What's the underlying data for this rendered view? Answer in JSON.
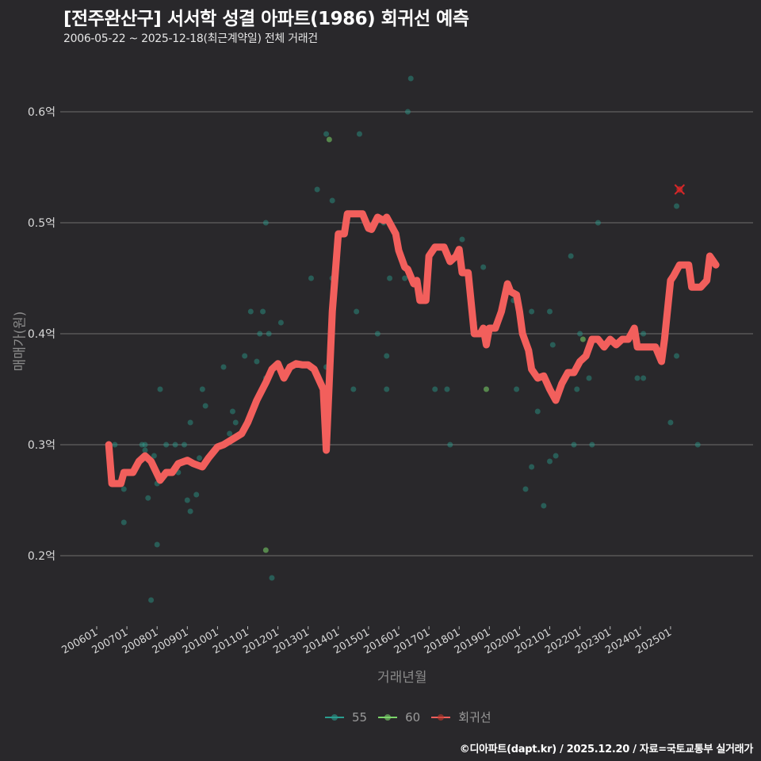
{
  "header": {
    "title": "[전주완산구] 서서학 성결 아파트(1986) 회귀선 예측",
    "subtitle": "2006-05-22 ~ 2025-12-18(최근계약일) 전체 거래건"
  },
  "axes": {
    "ylabel": "매매가(원)",
    "xlabel": "거래년월"
  },
  "legend": {
    "items": [
      {
        "label": "55",
        "color": "#2a9d8f"
      },
      {
        "label": "60",
        "color": "#7bd56a"
      },
      {
        "label": "회귀선",
        "color": "#f25f5c"
      }
    ]
  },
  "footer": {
    "credit": "©디아파트(dapt.kr) / 2025.12.20 / 자료=국토교통부 실거래가"
  },
  "chart_data": {
    "type": "scatter",
    "title": "[전주완산구] 서서학 성결 아파트(1986) 회귀선 예측",
    "subtitle": "2006-05-22 ~ 2025-12-18(최근계약일) 전체 거래건",
    "xlabel": "거래년월",
    "ylabel": "매매가(원)",
    "ylim": [
      0.14,
      0.655
    ],
    "y_ticks": [
      0.2,
      0.3,
      0.4,
      0.5,
      0.6
    ],
    "y_tick_labels": [
      "0.2억",
      "0.3억",
      "0.4억",
      "0.5억",
      "0.6억"
    ],
    "x_ticks": [
      "200601",
      "200701",
      "200801",
      "200901",
      "201001",
      "201101",
      "201201",
      "201301",
      "201401",
      "201501",
      "201601",
      "201701",
      "201801",
      "201901",
      "202001",
      "202101",
      "202201",
      "202301",
      "202401",
      "202501"
    ],
    "grid": "horizontal",
    "legend_position": "bottom",
    "series": [
      {
        "name": "55",
        "type": "scatter",
        "color": "#2a9d8f",
        "points": [
          [
            2006.6,
            0.3
          ],
          [
            2006.9,
            0.23
          ],
          [
            2006.9,
            0.26
          ],
          [
            2007.5,
            0.3
          ],
          [
            2007.6,
            0.3
          ],
          [
            2007.6,
            0.295
          ],
          [
            2007.7,
            0.252
          ],
          [
            2007.8,
            0.16
          ],
          [
            2007.9,
            0.29
          ],
          [
            2008.0,
            0.265
          ],
          [
            2008.0,
            0.21
          ],
          [
            2008.1,
            0.35
          ],
          [
            2008.3,
            0.3
          ],
          [
            2008.6,
            0.3
          ],
          [
            2008.7,
            0.275
          ],
          [
            2008.9,
            0.3
          ],
          [
            2009.0,
            0.25
          ],
          [
            2009.1,
            0.24
          ],
          [
            2009.1,
            0.32
          ],
          [
            2009.3,
            0.255
          ],
          [
            2009.4,
            0.288
          ],
          [
            2009.5,
            0.35
          ],
          [
            2009.6,
            0.335
          ],
          [
            2010.2,
            0.37
          ],
          [
            2010.4,
            0.31
          ],
          [
            2010.5,
            0.33
          ],
          [
            2010.6,
            0.32
          ],
          [
            2010.9,
            0.38
          ],
          [
            2011.1,
            0.42
          ],
          [
            2011.3,
            0.375
          ],
          [
            2011.4,
            0.4
          ],
          [
            2011.5,
            0.42
          ],
          [
            2011.6,
            0.36
          ],
          [
            2011.6,
            0.5
          ],
          [
            2011.7,
            0.4
          ],
          [
            2011.8,
            0.18
          ],
          [
            2012.1,
            0.41
          ],
          [
            2013.1,
            0.45
          ],
          [
            2013.3,
            0.53
          ],
          [
            2013.6,
            0.58
          ],
          [
            2013.6,
            0.37
          ],
          [
            2013.8,
            0.52
          ],
          [
            2013.8,
            0.45
          ],
          [
            2014.5,
            0.35
          ],
          [
            2014.6,
            0.42
          ],
          [
            2014.7,
            0.58
          ],
          [
            2015.3,
            0.4
          ],
          [
            2015.5,
            0.5
          ],
          [
            2015.6,
            0.35
          ],
          [
            2015.6,
            0.38
          ],
          [
            2015.7,
            0.45
          ],
          [
            2016.2,
            0.45
          ],
          [
            2016.3,
            0.6
          ],
          [
            2016.4,
            0.63
          ],
          [
            2016.9,
            0.43
          ],
          [
            2016.9,
            0.435
          ],
          [
            2017.2,
            0.35
          ],
          [
            2017.6,
            0.35
          ],
          [
            2017.7,
            0.3
          ],
          [
            2018.1,
            0.485
          ],
          [
            2018.5,
            0.41
          ],
          [
            2018.8,
            0.46
          ],
          [
            2019.8,
            0.43
          ],
          [
            2019.9,
            0.35
          ],
          [
            2020.2,
            0.26
          ],
          [
            2020.4,
            0.28
          ],
          [
            2020.4,
            0.42
          ],
          [
            2020.6,
            0.33
          ],
          [
            2020.8,
            0.245
          ],
          [
            2021.0,
            0.42
          ],
          [
            2021.0,
            0.285
          ],
          [
            2021.1,
            0.39
          ],
          [
            2021.2,
            0.29
          ],
          [
            2021.7,
            0.47
          ],
          [
            2021.8,
            0.3
          ],
          [
            2021.9,
            0.35
          ],
          [
            2022.0,
            0.4
          ],
          [
            2022.3,
            0.36
          ],
          [
            2022.4,
            0.3
          ],
          [
            2022.6,
            0.5
          ],
          [
            2023.9,
            0.36
          ],
          [
            2024.1,
            0.36
          ],
          [
            2024.1,
            0.4
          ],
          [
            2024.8,
            0.392
          ],
          [
            2025.0,
            0.32
          ],
          [
            2025.2,
            0.515
          ],
          [
            2025.2,
            0.38
          ],
          [
            2025.9,
            0.3
          ]
        ]
      },
      {
        "name": "60",
        "type": "scatter",
        "color": "#7bd56a",
        "points": [
          [
            2011.6,
            0.205
          ],
          [
            2013.7,
            0.575
          ],
          [
            2018.9,
            0.35
          ],
          [
            2022.1,
            0.395
          ]
        ]
      },
      {
        "name": "회귀선",
        "type": "line",
        "color": "#f25f5c",
        "points": [
          [
            2006.4,
            0.3
          ],
          [
            2006.5,
            0.265
          ],
          [
            2006.8,
            0.265
          ],
          [
            2006.9,
            0.275
          ],
          [
            2007.2,
            0.275
          ],
          [
            2007.4,
            0.285
          ],
          [
            2007.6,
            0.29
          ],
          [
            2007.8,
            0.285
          ],
          [
            2008.1,
            0.268
          ],
          [
            2008.3,
            0.275
          ],
          [
            2008.5,
            0.275
          ],
          [
            2008.7,
            0.283
          ],
          [
            2009.0,
            0.286
          ],
          [
            2009.2,
            0.283
          ],
          [
            2009.5,
            0.28
          ],
          [
            2009.7,
            0.288
          ],
          [
            2010.0,
            0.298
          ],
          [
            2010.2,
            0.3
          ],
          [
            2010.5,
            0.305
          ],
          [
            2010.8,
            0.31
          ],
          [
            2011.0,
            0.32
          ],
          [
            2011.3,
            0.34
          ],
          [
            2011.6,
            0.356
          ],
          [
            2011.8,
            0.368
          ],
          [
            2012.0,
            0.373
          ],
          [
            2012.2,
            0.36
          ],
          [
            2012.4,
            0.37
          ],
          [
            2012.6,
            0.373
          ],
          [
            2012.8,
            0.372
          ],
          [
            2013.0,
            0.372
          ],
          [
            2013.2,
            0.368
          ],
          [
            2013.5,
            0.35
          ],
          [
            2013.6,
            0.295
          ],
          [
            2013.8,
            0.42
          ],
          [
            2014.0,
            0.49
          ],
          [
            2014.2,
            0.49
          ],
          [
            2014.3,
            0.508
          ],
          [
            2014.6,
            0.508
          ],
          [
            2014.8,
            0.508
          ],
          [
            2015.0,
            0.495
          ],
          [
            2015.1,
            0.494
          ],
          [
            2015.3,
            0.505
          ],
          [
            2015.5,
            0.502
          ],
          [
            2015.6,
            0.505
          ],
          [
            2015.9,
            0.49
          ],
          [
            2016.0,
            0.475
          ],
          [
            2016.2,
            0.46
          ],
          [
            2016.3,
            0.458
          ],
          [
            2016.5,
            0.445
          ],
          [
            2016.6,
            0.448
          ],
          [
            2016.7,
            0.43
          ],
          [
            2016.9,
            0.43
          ],
          [
            2017.0,
            0.47
          ],
          [
            2017.2,
            0.478
          ],
          [
            2017.5,
            0.478
          ],
          [
            2017.7,
            0.465
          ],
          [
            2017.9,
            0.47
          ],
          [
            2018.0,
            0.476
          ],
          [
            2018.1,
            0.455
          ],
          [
            2018.3,
            0.455
          ],
          [
            2018.5,
            0.4
          ],
          [
            2018.7,
            0.4
          ],
          [
            2018.8,
            0.405
          ],
          [
            2018.9,
            0.39
          ],
          [
            2019.0,
            0.405
          ],
          [
            2019.2,
            0.405
          ],
          [
            2019.4,
            0.42
          ],
          [
            2019.6,
            0.445
          ],
          [
            2019.7,
            0.438
          ],
          [
            2019.9,
            0.435
          ],
          [
            2020.0,
            0.42
          ],
          [
            2020.1,
            0.4
          ],
          [
            2020.3,
            0.385
          ],
          [
            2020.4,
            0.368
          ],
          [
            2020.6,
            0.36
          ],
          [
            2020.8,
            0.362
          ],
          [
            2021.0,
            0.35
          ],
          [
            2021.2,
            0.34
          ],
          [
            2021.4,
            0.355
          ],
          [
            2021.6,
            0.365
          ],
          [
            2021.8,
            0.365
          ],
          [
            2022.0,
            0.375
          ],
          [
            2022.2,
            0.38
          ],
          [
            2022.4,
            0.395
          ],
          [
            2022.6,
            0.395
          ],
          [
            2022.8,
            0.388
          ],
          [
            2023.0,
            0.395
          ],
          [
            2023.2,
            0.39
          ],
          [
            2023.4,
            0.395
          ],
          [
            2023.6,
            0.395
          ],
          [
            2023.8,
            0.405
          ],
          [
            2023.9,
            0.388
          ],
          [
            2024.2,
            0.388
          ],
          [
            2024.5,
            0.388
          ],
          [
            2024.7,
            0.375
          ],
          [
            2024.8,
            0.395
          ],
          [
            2025.0,
            0.448
          ],
          [
            2025.1,
            0.452
          ],
          [
            2025.3,
            0.462
          ],
          [
            2025.6,
            0.462
          ],
          [
            2025.7,
            0.442
          ],
          [
            2026.0,
            0.442
          ],
          [
            2026.2,
            0.448
          ],
          [
            2026.3,
            0.47
          ],
          [
            2026.5,
            0.462
          ]
        ]
      }
    ],
    "annotations": [
      {
        "type": "predicted-marker",
        "shape": "x",
        "color": "#d62728",
        "x": 2025.3,
        "y": 0.53
      }
    ]
  }
}
